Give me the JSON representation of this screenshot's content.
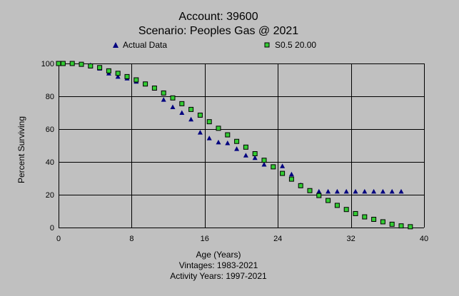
{
  "chart_data": {
    "type": "scatter",
    "title": "Account: 39600",
    "subtitle": "Scenario: Peoples Gas @ 2021",
    "xlabel": "Age (Years)",
    "ylabel": "Percent Surviving",
    "footer": [
      "Vintages: 1983-2021",
      "Activity Years: 1997-2021"
    ],
    "xlim": [
      0,
      40
    ],
    "ylim": [
      0,
      100
    ],
    "xticks": [
      0,
      8,
      16,
      24,
      32,
      40
    ],
    "yticks": [
      0,
      20,
      40,
      60,
      80,
      100
    ],
    "grid": "major",
    "legend_position": "top",
    "series": [
      {
        "name": "Actual Data",
        "marker": "triangle",
        "color": "#00007f",
        "points": [
          [
            0,
            100
          ],
          [
            0.5,
            100
          ],
          [
            1.5,
            100
          ],
          [
            2.5,
            99.5
          ],
          [
            3.5,
            99
          ],
          [
            4.5,
            97
          ],
          [
            5.5,
            94
          ],
          [
            6.5,
            92
          ],
          [
            7.5,
            91
          ],
          [
            8.5,
            89
          ],
          [
            9.5,
            87.5
          ],
          [
            10.5,
            85
          ],
          [
            11.5,
            78
          ],
          [
            12.5,
            73.5
          ],
          [
            13.5,
            70
          ],
          [
            14.5,
            66
          ],
          [
            15.5,
            58
          ],
          [
            16.5,
            54.5
          ],
          [
            17.5,
            52
          ],
          [
            18.5,
            51.5
          ],
          [
            19.5,
            48
          ],
          [
            20.5,
            44
          ],
          [
            21.5,
            42.5
          ],
          [
            22.5,
            38.5
          ],
          [
            23.5,
            37
          ],
          [
            24.5,
            37.5
          ],
          [
            25.5,
            32.5
          ],
          [
            26.5,
            26
          ],
          [
            27.5,
            22.5
          ],
          [
            28.5,
            22
          ],
          [
            29.5,
            22
          ],
          [
            30.5,
            22
          ],
          [
            31.5,
            22
          ],
          [
            32.5,
            22
          ],
          [
            33.5,
            22
          ],
          [
            34.5,
            22
          ],
          [
            35.5,
            22
          ],
          [
            36.5,
            22
          ],
          [
            37.5,
            22
          ]
        ]
      },
      {
        "name": "S0.5 20.00",
        "marker": "square",
        "color": "#33cc33",
        "points": [
          [
            0,
            100
          ],
          [
            0.5,
            100
          ],
          [
            1.5,
            100
          ],
          [
            2.5,
            99.5
          ],
          [
            3.5,
            98.5
          ],
          [
            4.5,
            97.5
          ],
          [
            5.5,
            95.5
          ],
          [
            6.5,
            94
          ],
          [
            7.5,
            92
          ],
          [
            8.5,
            90
          ],
          [
            9.5,
            87.5
          ],
          [
            10.5,
            85
          ],
          [
            11.5,
            82
          ],
          [
            12.5,
            79
          ],
          [
            13.5,
            75.5
          ],
          [
            14.5,
            72
          ],
          [
            15.5,
            68.5
          ],
          [
            16.5,
            64.5
          ],
          [
            17.5,
            60.5
          ],
          [
            18.5,
            56.5
          ],
          [
            19.5,
            52.5
          ],
          [
            20.5,
            49
          ],
          [
            21.5,
            45
          ],
          [
            22.5,
            41
          ],
          [
            23.5,
            37
          ],
          [
            24.5,
            33
          ],
          [
            25.5,
            29.5
          ],
          [
            26.5,
            25.5
          ],
          [
            27.5,
            22.5
          ],
          [
            28.5,
            19.5
          ],
          [
            29.5,
            16.5
          ],
          [
            30.5,
            13.5
          ],
          [
            31.5,
            11
          ],
          [
            32.5,
            8.5
          ],
          [
            33.5,
            6.5
          ],
          [
            34.5,
            5
          ],
          [
            35.5,
            3.5
          ],
          [
            36.5,
            2
          ],
          [
            37.5,
            1
          ],
          [
            38.5,
            0.5
          ]
        ]
      }
    ]
  }
}
